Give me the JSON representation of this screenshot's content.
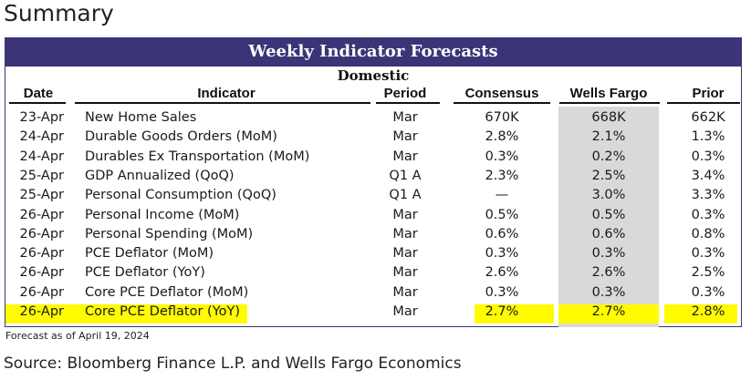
{
  "page": {
    "title": "Summary",
    "banner": "Weekly Indicator Forecasts",
    "section": "Domestic",
    "headers": {
      "date": "Date",
      "indicator": "Indicator",
      "period": "Period",
      "consensus": "Consensus",
      "wells_fargo": "Wells Fargo",
      "prior": "Prior"
    },
    "rows": [
      {
        "date": "23-Apr",
        "indicator": "New Home Sales",
        "period": "Mar",
        "consensus": "670K",
        "wells_fargo": "668K",
        "prior": "662K"
      },
      {
        "date": "24-Apr",
        "indicator": "Durable Goods Orders (MoM)",
        "period": "Mar",
        "consensus": "2.8%",
        "wells_fargo": "2.1%",
        "prior": "1.3%"
      },
      {
        "date": "24-Apr",
        "indicator": "Durables Ex Transportation (MoM)",
        "period": "Mar",
        "consensus": "0.3%",
        "wells_fargo": "0.2%",
        "prior": "0.3%"
      },
      {
        "date": "25-Apr",
        "indicator": "GDP Annualized (QoQ)",
        "period": "Q1 A",
        "consensus": "2.3%",
        "wells_fargo": "2.5%",
        "prior": "3.4%"
      },
      {
        "date": "25-Apr",
        "indicator": "Personal Consumption (QoQ)",
        "period": "Q1 A",
        "consensus": "—",
        "wells_fargo": "3.0%",
        "prior": "3.3%"
      },
      {
        "date": "26-Apr",
        "indicator": "Personal Income (MoM)",
        "period": "Mar",
        "consensus": "0.5%",
        "wells_fargo": "0.5%",
        "prior": "0.3%"
      },
      {
        "date": "26-Apr",
        "indicator": "Personal Spending (MoM)",
        "period": "Mar",
        "consensus": "0.6%",
        "wells_fargo": "0.6%",
        "prior": "0.8%"
      },
      {
        "date": "26-Apr",
        "indicator": "PCE Deflator (MoM)",
        "period": "Mar",
        "consensus": "0.3%",
        "wells_fargo": "0.3%",
        "prior": "0.3%"
      },
      {
        "date": "26-Apr",
        "indicator": "PCE Deflator (YoY)",
        "period": "Mar",
        "consensus": "2.6%",
        "wells_fargo": "2.6%",
        "prior": "2.5%"
      },
      {
        "date": "26-Apr",
        "indicator": "Core PCE Deflator (MoM)",
        "period": "Mar",
        "consensus": "0.3%",
        "wells_fargo": "0.3%",
        "prior": "0.3%"
      },
      {
        "date": "26-Apr",
        "indicator": "Core PCE Deflator (YoY)",
        "period": "Mar",
        "consensus": "2.7%",
        "wells_fargo": "2.7%",
        "prior": "2.8%"
      }
    ],
    "highlighted_row_index": 10,
    "note": "Forecast as of April 19, 2024",
    "source": "Source: Bloomberg Finance L.P. and Wells Fargo Economics"
  },
  "colors": {
    "banner_bg": "#3b3578",
    "wells_fargo_column_bg": "#d9d9d9",
    "highlight": "#fffb00"
  }
}
